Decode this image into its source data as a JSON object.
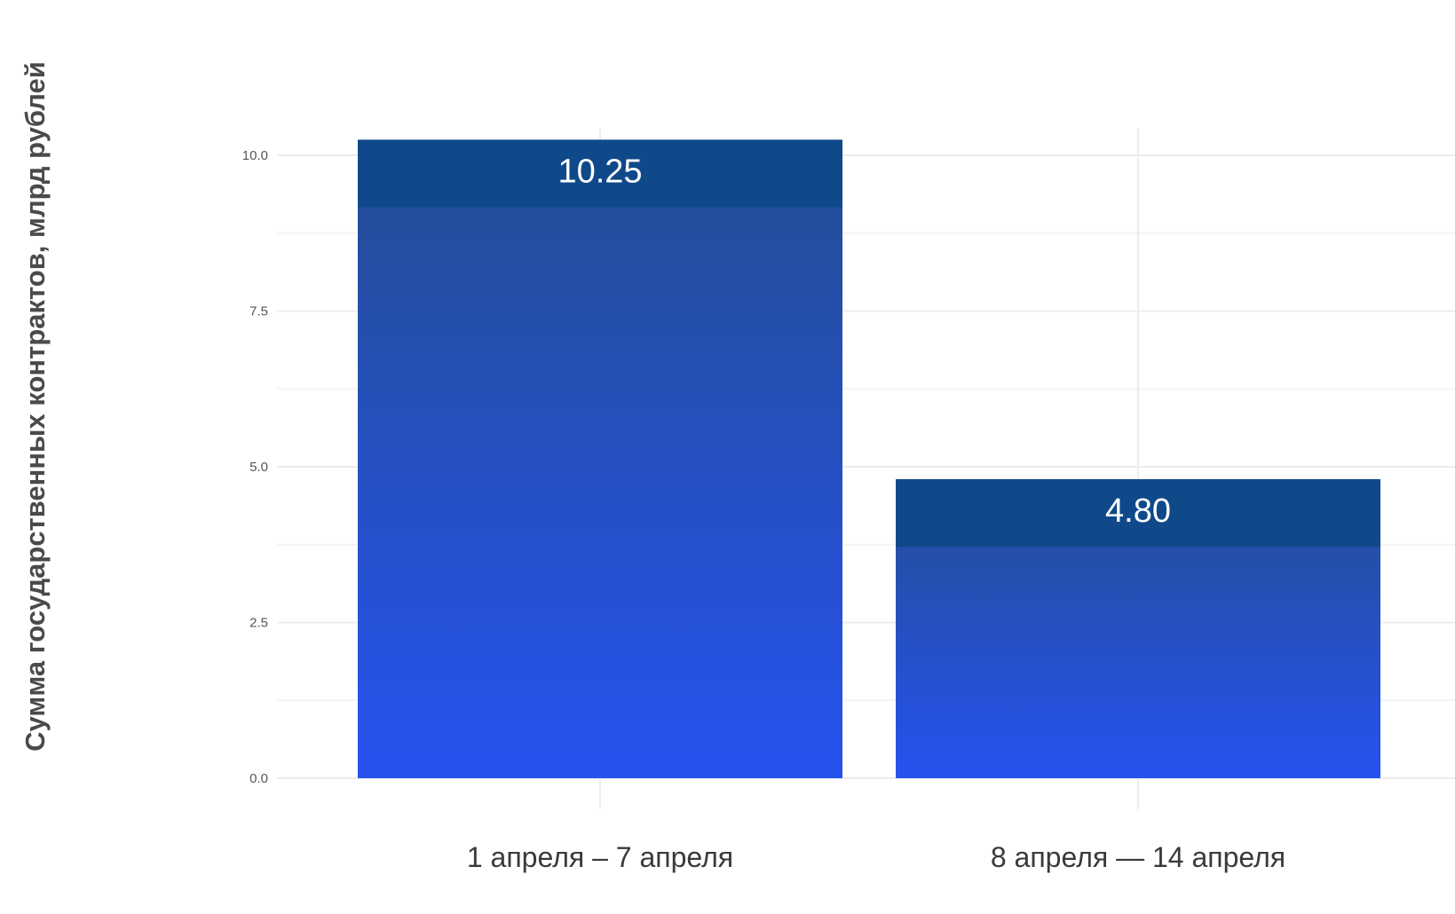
{
  "chart_data": {
    "type": "bar",
    "categories": [
      "1 апреля – 7 апреля",
      "8 апреля — 14 апреля"
    ],
    "values": [
      10.25,
      4.8
    ],
    "value_labels": [
      "10.25",
      "4.80"
    ],
    "ylabel": "Сумма государственных контрактов, млрд рублей",
    "xlabel": "",
    "ylim": [
      0,
      10.5
    ],
    "yticks": [
      0,
      2.5,
      5,
      7.5,
      10
    ],
    "ytick_labels": [
      "0.0",
      "2.5",
      "5.0",
      "7.5",
      "10.0"
    ],
    "grid": true,
    "legend": "none",
    "colors": {
      "bar_top": "#10498a",
      "bar_mid": "#244e92",
      "bar_bottom": "#2752ef",
      "grid": "#ececec",
      "text": "#3a3a3a",
      "value_text": "#ffffff"
    }
  }
}
